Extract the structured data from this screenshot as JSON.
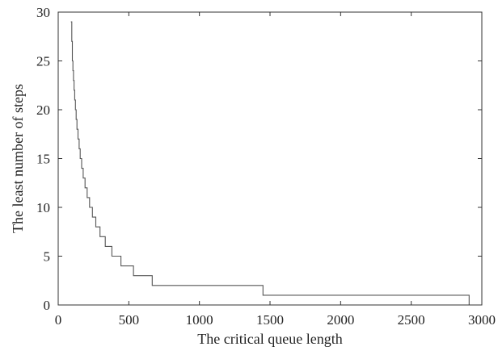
{
  "chart_data": {
    "type": "line",
    "step": true,
    "title": "",
    "xlabel": "The critical queue length",
    "ylabel": "The least number of steps",
    "xlim": [
      0,
      3000
    ],
    "ylim": [
      0,
      30
    ],
    "xticks": [
      0,
      500,
      1000,
      1500,
      2000,
      2500,
      3000
    ],
    "yticks": [
      0,
      5,
      10,
      15,
      20,
      25,
      30
    ],
    "grid": false,
    "legend": "none",
    "line_color": "#555555",
    "series": [
      {
        "x": [
          97,
          101,
          104,
          108,
          113,
          117,
          121,
          126,
          132,
          138,
          145,
          152,
          161,
          170,
          181,
          194,
          208,
          225,
          244,
          268,
          297,
          333,
          381,
          444,
          533,
          667,
          889,
          1333,
          2667,
          2910
        ],
        "y": [
          29,
          27,
          25,
          24,
          23,
          22,
          21,
          20,
          19,
          18,
          17,
          16,
          15,
          14,
          13,
          12,
          11,
          10,
          9,
          8,
          7,
          6,
          5,
          4,
          3,
          2,
          1,
          1,
          1,
          0
        ]
      }
    ],
    "steps": [
      {
        "y": 29,
        "x_start": 90,
        "x_end": 96
      },
      {
        "y": 27,
        "x_start": 96,
        "x_end": 100
      },
      {
        "y": 25,
        "x_start": 100,
        "x_end": 104
      },
      {
        "y": 24,
        "x_start": 104,
        "x_end": 108
      },
      {
        "y": 23,
        "x_start": 108,
        "x_end": 112
      },
      {
        "y": 22,
        "x_start": 112,
        "x_end": 117
      },
      {
        "y": 21,
        "x_start": 117,
        "x_end": 122
      },
      {
        "y": 20,
        "x_start": 122,
        "x_end": 127
      },
      {
        "y": 19,
        "x_start": 127,
        "x_end": 133
      },
      {
        "y": 18,
        "x_start": 133,
        "x_end": 140
      },
      {
        "y": 17,
        "x_start": 140,
        "x_end": 148
      },
      {
        "y": 16,
        "x_start": 148,
        "x_end": 156
      },
      {
        "y": 15,
        "x_start": 156,
        "x_end": 166
      },
      {
        "y": 14,
        "x_start": 166,
        "x_end": 177
      },
      {
        "y": 13,
        "x_start": 177,
        "x_end": 190
      },
      {
        "y": 12,
        "x_start": 190,
        "x_end": 205
      },
      {
        "y": 11,
        "x_start": 205,
        "x_end": 222
      },
      {
        "y": 10,
        "x_start": 222,
        "x_end": 242
      },
      {
        "y": 9,
        "x_start": 242,
        "x_end": 266
      },
      {
        "y": 8,
        "x_start": 266,
        "x_end": 296
      },
      {
        "y": 7,
        "x_start": 296,
        "x_end": 333
      },
      {
        "y": 6,
        "x_start": 333,
        "x_end": 380
      },
      {
        "y": 5,
        "x_start": 380,
        "x_end": 444
      },
      {
        "y": 4,
        "x_start": 444,
        "x_end": 533
      },
      {
        "y": 3,
        "x_start": 533,
        "x_end": 666
      },
      {
        "y": 2,
        "x_start": 666,
        "x_end": 963
      },
      {
        "y": 2,
        "x_start": 963,
        "x_end": 1450
      },
      {
        "y": 1,
        "x_start": 1450,
        "x_end": 2910
      }
    ]
  }
}
